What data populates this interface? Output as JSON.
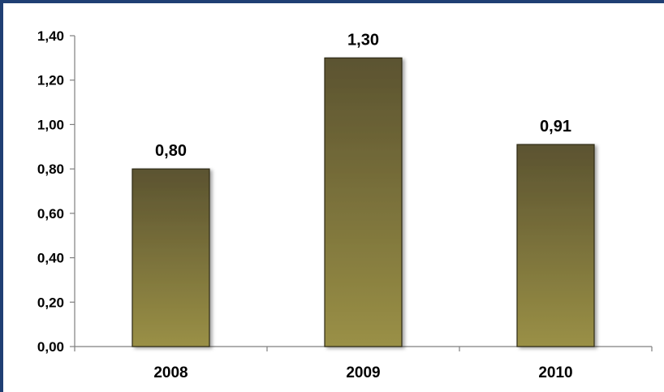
{
  "chart_data": {
    "type": "bar",
    "categories": [
      "2008",
      "2009",
      "2010"
    ],
    "values": [
      0.8,
      1.3,
      0.91
    ],
    "data_labels": [
      "0,80",
      "1,30",
      "0,91"
    ],
    "y_ticks": [
      0.0,
      0.2,
      0.4,
      0.6,
      0.8,
      1.0,
      1.2,
      1.4
    ],
    "y_tick_labels": [
      "0,00",
      "0,20",
      "0,40",
      "0,60",
      "0,80",
      "1,00",
      "1,20",
      "1,40"
    ],
    "ylim": [
      0,
      1.4
    ],
    "title": "",
    "xlabel": "",
    "ylabel": "",
    "grid": false,
    "legend": "none",
    "colors": {
      "bar_top": "#5b5330",
      "bar_bottom": "#9a9046",
      "axis": "#7f7f7f",
      "frame": "#1f3f73"
    }
  }
}
